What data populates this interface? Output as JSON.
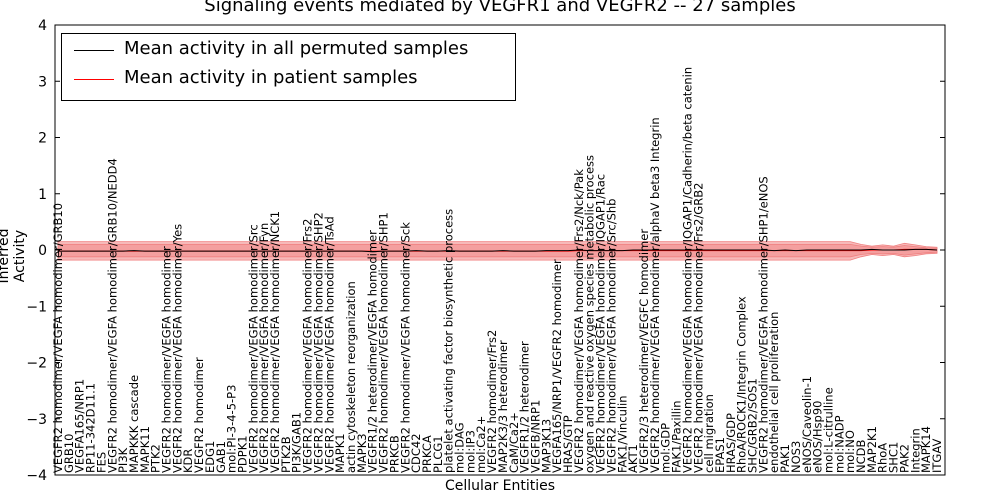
{
  "chart_data": {
    "type": "line",
    "title": "Signaling events mediated by VEGFR1 and VEGFR2 -- 27 samples",
    "xlabel": "Cellular Entities",
    "ylabel": "Inferred Activity",
    "ylim": [
      -4,
      4
    ],
    "yticks": [
      "4",
      "3",
      "2",
      "1",
      "0",
      "−1",
      "−2",
      "−3",
      "−4"
    ],
    "legend": [
      {
        "label": "Mean activity in all permuted samples",
        "color": "#000000"
      },
      {
        "label": "Mean activity in patient samples",
        "color": "#ff0000"
      }
    ],
    "band_color": "#f08080",
    "categories": [
      "VEGFR2 homodimer/VEGFA homodimer/GRB10",
      "GRB10",
      "VEGFA165/NRP1",
      "RP11-342D11.1",
      "FES",
      "VEGFR2 homodimer/VEGFA homodimer/GRB10/NEDD4",
      "PI3K",
      "MAPKKK cascade",
      "MAPK11",
      "PTK2",
      "VEGFR2 homodimer/VEGFA homodimer",
      "VEGFR2 homodimer/VEGFA homodimer/Yes",
      "KDR",
      "VEGFR2 homodimer",
      "EDG1",
      "GAB1",
      "mol:PI-3-4-5-P3",
      "PDPK1",
      "VEGFR2 homodimer/VEGFA homodimer/Src",
      "VEGFR2 homodimer/VEGFA homodimer/Fyn",
      "VEGFR2 homodimer/VEGFA homodimer/NCK1",
      "PTK2B",
      "PI3K/GAB1",
      "VEGFR2 homodimer/VEGFA homodimer/Frs2",
      "VEGFR2 homodimer/VEGFA homodimer/SHP2",
      "VEGFR2 homodimer/VEGFA homodimer/TsAd",
      "MAPK1",
      "actin cytoskeleton reorganization",
      "MAPK3",
      "VEGFR1/2 heterodimer/VEGFA homodimer",
      "VEGFR2 homodimer/VEGFA homodimer/SHP1",
      "PRKCB",
      "VEGFR2 homodimer/VEGFA homodimer/Sck",
      "CDC42",
      "PRKCA",
      "PLCG1",
      "platelet activating factor biosynthetic process",
      "mol:DAG",
      "mol:IP3",
      "mol:Ca2+",
      "VEGFR2 homodimer/Frs2",
      "MAP2K3/3 heterodimer",
      "CaM/Ca2+",
      "VEGFR1/2 heterodimer",
      "VEGFB/NRP1",
      "MAP3K13",
      "VEGFA165/NRP1/VEGFR2 homodimer",
      "HRAS/GTP",
      "VEGFR2 homodimer/VEGFA homodimer/Frs2/Nck/Pak",
      "oxygen and reactive oxygen species metabolic process",
      "VEGFR2 homodimer/VEGFA homodimer/IQGAP1/Rac",
      "VEGFR2 homodimer/VEGFA homodimer/Src/Shb",
      "FAK1/Vinculin",
      "AKT1",
      "VEGFR2/3 heterodimer/VEGFC homodimer",
      "VEGFR2 homodimer/VEGFA homodimer/alphaV beta3 Integrin",
      "mol:GDP",
      "FAK1/Paxillin",
      "VEGFR2 homodimer/VEGFA homodimer/IQGAP1/Cadherin/beta catenin",
      "VEGFR2 homodimer/VEGFA homodimer/Frs2/GRB2",
      "cell migration",
      "EPAS1",
      "HRAS/GDP",
      "RhoA/ROCK1/Integrin Complex",
      "SHC/GRB2/SOS1",
      "VEGFR2 homodimer/VEGFA homodimer/SHP1/eNOS",
      "endothelial cell proliferation",
      "PAK1",
      "NOS3",
      "eNOS/Caveolin-1",
      "eNOS/Hsp90",
      "mol:L-citrulline",
      "mol:NADP",
      "mol:NO",
      "NCDB",
      "MAP2K1",
      "RhoA",
      "SHC1",
      "PAK2",
      "Integrin",
      "MAPK14",
      "ITGAV"
    ],
    "series": [
      {
        "name": "Mean activity in all permuted samples",
        "values": [
          -0.02,
          -0.02,
          -0.02,
          -0.02,
          -0.02,
          -0.02,
          -0.02,
          -0.01,
          -0.02,
          -0.02,
          -0.02,
          -0.02,
          -0.02,
          -0.02,
          -0.02,
          -0.02,
          -0.02,
          -0.02,
          -0.02,
          -0.02,
          -0.02,
          -0.02,
          -0.02,
          -0.02,
          -0.02,
          -0.02,
          -0.02,
          -0.02,
          -0.02,
          -0.03,
          -0.02,
          -0.02,
          -0.02,
          -0.01,
          -0.02,
          -0.02,
          -0.01,
          -0.02,
          -0.02,
          -0.02,
          -0.02,
          -0.01,
          -0.02,
          -0.02,
          -0.02,
          -0.01,
          -0.01,
          -0.01,
          0.0,
          -0.01,
          -0.01,
          -0.01,
          -0.01,
          0.0,
          0.0,
          0.0,
          0.0,
          0.0,
          0.0,
          0.0,
          0.0,
          0.0,
          0.0,
          0.0,
          0.0,
          0.0,
          -0.01,
          0.0,
          -0.01,
          0.0,
          0.0,
          0.0,
          0.0,
          0.0,
          0.0,
          0.01,
          0.0,
          0.0,
          0.0,
          0.01,
          0.01,
          0.0
        ],
        "upper": [
          0.15,
          0.15,
          0.15,
          0.15,
          0.15,
          0.15,
          0.15,
          0.15,
          0.15,
          0.15,
          0.15,
          0.15,
          0.15,
          0.15,
          0.15,
          0.15,
          0.15,
          0.15,
          0.15,
          0.15,
          0.15,
          0.15,
          0.15,
          0.15,
          0.15,
          0.15,
          0.15,
          0.15,
          0.15,
          0.15,
          0.15,
          0.15,
          0.15,
          0.15,
          0.15,
          0.15,
          0.15,
          0.15,
          0.15,
          0.15,
          0.15,
          0.15,
          0.15,
          0.15,
          0.15,
          0.15,
          0.15,
          0.15,
          0.15,
          0.15,
          0.15,
          0.15,
          0.15,
          0.15,
          0.15,
          0.15,
          0.15,
          0.15,
          0.15,
          0.15,
          0.15,
          0.15,
          0.15,
          0.15,
          0.15,
          0.15,
          0.15,
          0.15,
          0.15,
          0.15,
          0.15,
          0.15,
          0.15,
          0.15,
          0.1,
          0.07,
          0.09,
          0.07,
          0.12,
          0.09,
          0.06,
          0.05
        ],
        "lower": [
          -0.18,
          -0.18,
          -0.18,
          -0.18,
          -0.18,
          -0.18,
          -0.18,
          -0.18,
          -0.18,
          -0.18,
          -0.18,
          -0.18,
          -0.18,
          -0.18,
          -0.18,
          -0.18,
          -0.18,
          -0.18,
          -0.18,
          -0.18,
          -0.18,
          -0.18,
          -0.18,
          -0.18,
          -0.18,
          -0.18,
          -0.18,
          -0.18,
          -0.18,
          -0.18,
          -0.18,
          -0.18,
          -0.18,
          -0.18,
          -0.18,
          -0.18,
          -0.18,
          -0.18,
          -0.18,
          -0.18,
          -0.18,
          -0.18,
          -0.18,
          -0.18,
          -0.18,
          -0.18,
          -0.18,
          -0.18,
          -0.18,
          -0.18,
          -0.18,
          -0.18,
          -0.18,
          -0.18,
          -0.18,
          -0.18,
          -0.18,
          -0.18,
          -0.18,
          -0.18,
          -0.18,
          -0.18,
          -0.18,
          -0.18,
          -0.18,
          -0.18,
          -0.18,
          -0.18,
          -0.18,
          -0.18,
          -0.18,
          -0.18,
          -0.18,
          -0.18,
          -0.12,
          -0.08,
          -0.1,
          -0.08,
          -0.12,
          -0.1,
          -0.07,
          -0.06
        ]
      },
      {
        "name": "Mean activity in patient samples",
        "values": [
          -0.02,
          -0.02,
          -0.02,
          -0.02,
          -0.02,
          -0.02,
          -0.02,
          -0.02,
          -0.02,
          -0.02,
          -0.02,
          -0.02,
          -0.02,
          -0.02,
          -0.02,
          -0.02,
          -0.02,
          -0.02,
          -0.02,
          -0.02,
          -0.02,
          -0.02,
          -0.02,
          -0.02,
          -0.02,
          -0.02,
          -0.02,
          -0.02,
          -0.02,
          -0.02,
          -0.02,
          -0.02,
          -0.02,
          -0.02,
          -0.02,
          -0.02,
          -0.02,
          -0.02,
          -0.02,
          -0.02,
          -0.02,
          -0.02,
          -0.02,
          -0.02,
          -0.02,
          -0.02,
          -0.02,
          -0.02,
          -0.01,
          -0.01,
          -0.01,
          -0.01,
          -0.01,
          -0.01,
          -0.01,
          -0.01,
          -0.01,
          -0.01,
          -0.01,
          -0.01,
          -0.01,
          -0.01,
          -0.01,
          -0.01,
          -0.01,
          -0.01,
          -0.01,
          -0.01,
          -0.01,
          -0.01,
          -0.01,
          -0.01,
          -0.01,
          -0.01,
          -0.01,
          0.0,
          0.0,
          0.0,
          0.01,
          0.01,
          0.01,
          0.0
        ],
        "upper": [
          0.1,
          0.1,
          0.1,
          0.1,
          0.1,
          0.1,
          0.1,
          0.1,
          0.1,
          0.1,
          0.1,
          0.1,
          0.1,
          0.1,
          0.1,
          0.1,
          0.1,
          0.1,
          0.1,
          0.1,
          0.1,
          0.1,
          0.1,
          0.1,
          0.1,
          0.1,
          0.1,
          0.1,
          0.1,
          0.1,
          0.1,
          0.1,
          0.1,
          0.1,
          0.1,
          0.1,
          0.1,
          0.1,
          0.1,
          0.1,
          0.1,
          0.1,
          0.1,
          0.1,
          0.1,
          0.1,
          0.1,
          0.1,
          0.1,
          0.1,
          0.1,
          0.1,
          0.1,
          0.1,
          0.1,
          0.1,
          0.1,
          0.1,
          0.1,
          0.1,
          0.1,
          0.1,
          0.1,
          0.1,
          0.1,
          0.1,
          0.1,
          0.1,
          0.1,
          0.1,
          0.1,
          0.1,
          0.1,
          0.1,
          0.07,
          0.05,
          0.06,
          0.05,
          0.08,
          0.06,
          0.04,
          0.03
        ],
        "lower": [
          -0.12,
          -0.12,
          -0.12,
          -0.12,
          -0.12,
          -0.12,
          -0.12,
          -0.12,
          -0.12,
          -0.12,
          -0.12,
          -0.12,
          -0.12,
          -0.12,
          -0.12,
          -0.12,
          -0.12,
          -0.12,
          -0.12,
          -0.12,
          -0.12,
          -0.12,
          -0.12,
          -0.12,
          -0.12,
          -0.12,
          -0.12,
          -0.12,
          -0.12,
          -0.12,
          -0.12,
          -0.12,
          -0.12,
          -0.12,
          -0.12,
          -0.12,
          -0.12,
          -0.12,
          -0.12,
          -0.12,
          -0.12,
          -0.12,
          -0.12,
          -0.12,
          -0.12,
          -0.12,
          -0.12,
          -0.12,
          -0.12,
          -0.12,
          -0.12,
          -0.12,
          -0.12,
          -0.12,
          -0.12,
          -0.12,
          -0.12,
          -0.12,
          -0.12,
          -0.12,
          -0.12,
          -0.12,
          -0.12,
          -0.12,
          -0.12,
          -0.12,
          -0.12,
          -0.12,
          -0.12,
          -0.12,
          -0.12,
          -0.12,
          -0.12,
          -0.12,
          -0.08,
          -0.06,
          -0.07,
          -0.06,
          -0.09,
          -0.07,
          -0.05,
          -0.04
        ]
      }
    ]
  }
}
